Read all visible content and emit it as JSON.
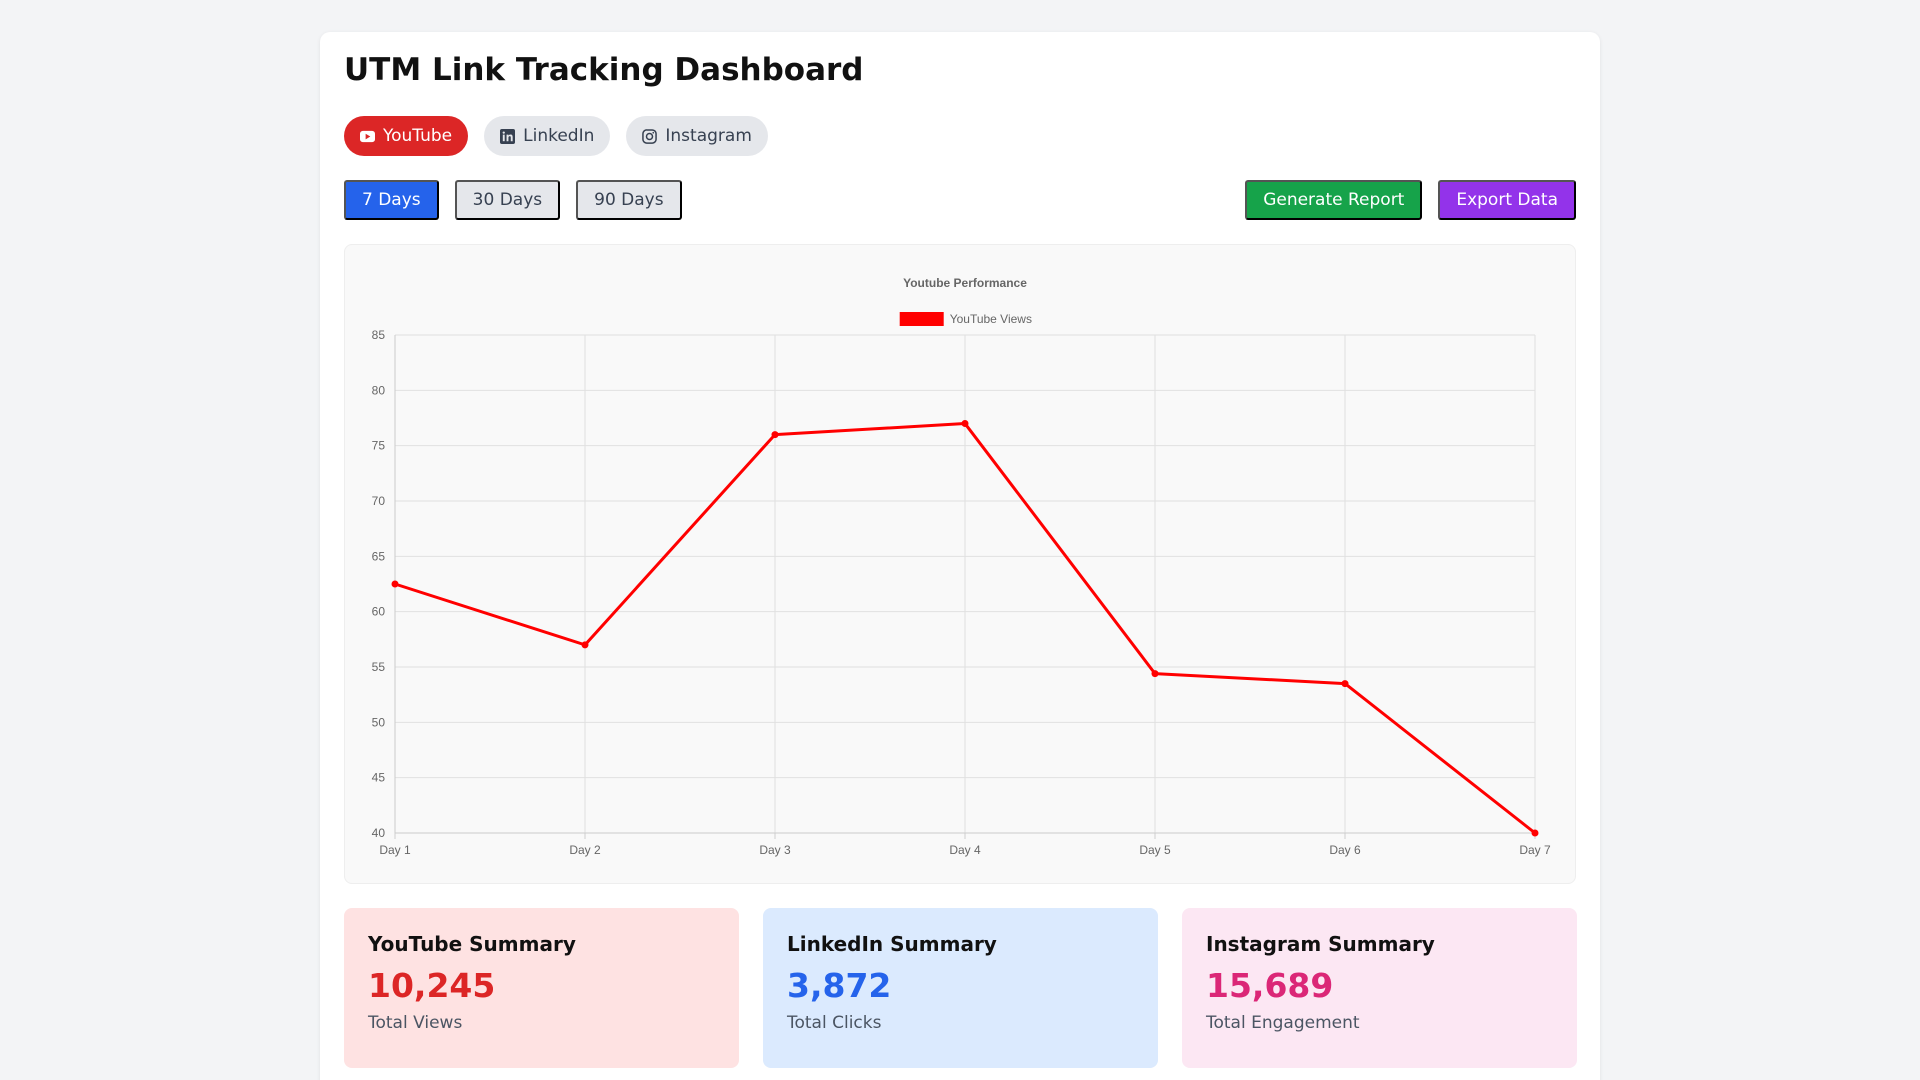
{
  "page": {
    "title": "UTM Link Tracking Dashboard"
  },
  "platforms": [
    {
      "label": "YouTube",
      "icon": "youtube-icon",
      "active": true
    },
    {
      "label": "LinkedIn",
      "icon": "linkedin-icon",
      "active": false
    },
    {
      "label": "Instagram",
      "icon": "instagram-icon",
      "active": false
    }
  ],
  "ranges": [
    {
      "label": "7 Days",
      "active": true
    },
    {
      "label": "30 Days",
      "active": false
    },
    {
      "label": "90 Days",
      "active": false
    }
  ],
  "actions": {
    "generate_report": "Generate Report",
    "export_data": "Export Data"
  },
  "colors": {
    "youtube": "#dc2626",
    "active_range": "#2563eb",
    "generate": "#16a34a",
    "export": "#9333ea",
    "line": "#ff0000"
  },
  "chart_data": {
    "type": "line",
    "title": "Youtube Performance",
    "categories": [
      "Day 1",
      "Day 2",
      "Day 3",
      "Day 4",
      "Day 5",
      "Day 6",
      "Day 7"
    ],
    "series": [
      {
        "name": "YouTube Views",
        "color": "#ff0000",
        "values": [
          62.5,
          57,
          76,
          77,
          54.4,
          53.5,
          40
        ]
      }
    ],
    "ylim": [
      40,
      85
    ],
    "yticks": [
      40,
      45,
      50,
      55,
      60,
      65,
      70,
      75,
      80,
      85
    ],
    "grid": true,
    "legend": "top"
  },
  "summaries": [
    {
      "title": "YouTube Summary",
      "value": "10,245",
      "label": "Total Views"
    },
    {
      "title": "LinkedIn Summary",
      "value": "3,872",
      "label": "Total Clicks"
    },
    {
      "title": "Instagram Summary",
      "value": "15,689",
      "label": "Total Engagement"
    }
  ]
}
